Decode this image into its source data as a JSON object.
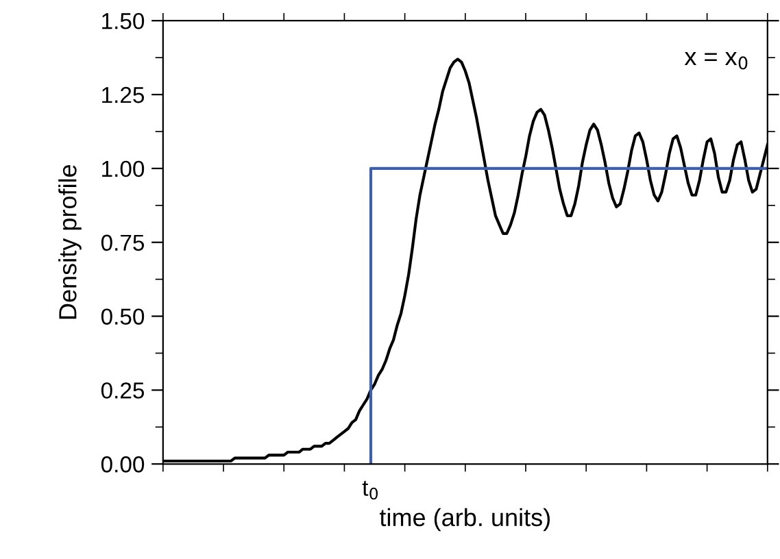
{
  "chart_data": {
    "type": "line",
    "xlabel": "time (arb. units)",
    "ylabel": "Density profile",
    "annotations": [
      "x = x$_{0}$"
    ],
    "categories": [
      null,
      null,
      null,
      null,
      null,
      null,
      null,
      null,
      null,
      null,
      null,
      null,
      null,
      null,
      null,
      null,
      null,
      null,
      null,
      null,
      null,
      null,
      null,
      null,
      null,
      null,
      null,
      null,
      null,
      null,
      null,
      null,
      null,
      null,
      null,
      null,
      null,
      null,
      null,
      null,
      null,
      null,
      null,
      null,
      null,
      null,
      null,
      null,
      null,
      null,
      null,
      null,
      null,
      null,
      null,
      "t$_{0}$",
      null,
      null,
      null,
      null,
      null,
      null,
      null,
      null,
      null,
      null,
      null,
      null,
      null,
      null,
      null,
      null,
      null,
      null,
      null,
      null,
      null,
      null,
      null,
      null,
      null,
      null,
      null,
      null,
      null,
      null,
      null,
      null,
      null,
      null,
      null,
      null,
      null,
      null,
      null,
      null,
      null,
      null,
      null,
      null,
      null,
      null,
      null,
      null,
      null,
      null,
      null,
      null,
      null,
      null,
      null,
      null,
      null,
      null,
      null,
      null,
      null,
      null,
      null,
      null,
      null,
      null,
      null,
      null,
      null,
      null,
      null,
      null,
      null,
      null,
      null,
      null,
      null,
      null,
      null,
      null,
      null,
      null,
      null,
      null,
      null,
      null,
      null,
      null,
      null,
      null,
      null,
      null,
      null,
      null,
      null,
      null,
      null,
      null,
      null,
      null,
      null,
      null,
      null,
      null,
      null
    ],
    "ylim": [
      0,
      1.5
    ],
    "yticks": [
      {
        "value": 0,
        "label": "0.00"
      },
      {
        "value": 0.25,
        "label": "0.25"
      },
      {
        "value": 0.5,
        "label": "0.50"
      },
      {
        "value": 0.75,
        "label": "0.75"
      },
      {
        "value": 1.0,
        "label": "1.00"
      },
      {
        "value": 1.25,
        "label": "1.25"
      },
      {
        "value": 1.5,
        "label": "1.50"
      }
    ],
    "grid": false,
    "legend": false,
    "marker": "none",
    "line_style": "solid",
    "series": [
      {
        "color": "#000000",
        "values": [
          0.01,
          0.01,
          0.01,
          0.01,
          0.01,
          0.01,
          0.01,
          0.01,
          0.01,
          0.01,
          0.01,
          0.01,
          0.01,
          0.01,
          0.01,
          0.01,
          0.01,
          0.01,
          0.01,
          0.02,
          0.02,
          0.02,
          0.02,
          0.02,
          0.02,
          0.02,
          0.02,
          0.02,
          0.03,
          0.03,
          0.03,
          0.03,
          0.03,
          0.04,
          0.04,
          0.04,
          0.04,
          0.05,
          0.05,
          0.05,
          0.06,
          0.06,
          0.06,
          0.07,
          0.07,
          0.08,
          0.09,
          0.1,
          0.11,
          0.12,
          0.14,
          0.15,
          0.18,
          0.2,
          0.22,
          0.25,
          0.27,
          0.3,
          0.32,
          0.35,
          0.39,
          0.42,
          0.47,
          0.51,
          0.57,
          0.64,
          0.73,
          0.83,
          0.91,
          0.97,
          1.03,
          1.09,
          1.15,
          1.2,
          1.26,
          1.3,
          1.34,
          1.36,
          1.37,
          1.36,
          1.33,
          1.29,
          1.23,
          1.17,
          1.1,
          1.03,
          0.96,
          0.9,
          0.84,
          0.81,
          0.78,
          0.78,
          0.81,
          0.85,
          0.91,
          0.98,
          1.04,
          1.11,
          1.16,
          1.19,
          1.2,
          1.18,
          1.13,
          1.07,
          1.0,
          0.93,
          0.88,
          0.84,
          0.84,
          0.88,
          0.94,
          1.02,
          1.08,
          1.13,
          1.15,
          1.13,
          1.08,
          1.02,
          0.95,
          0.9,
          0.87,
          0.88,
          0.93,
          0.99,
          1.06,
          1.11,
          1.12,
          1.09,
          1.03,
          0.96,
          0.91,
          0.89,
          0.92,
          0.98,
          1.05,
          1.1,
          1.11,
          1.07,
          1.01,
          0.95,
          0.91,
          0.91,
          0.96,
          1.03,
          1.09,
          1.1,
          1.05,
          0.97,
          0.92,
          0.92,
          0.96,
          1.03,
          1.08,
          1.09,
          1.03,
          0.96,
          0.92,
          0.93,
          0.98,
          1.03,
          1.08
        ]
      },
      {
        "type": "step",
        "color": "#3f5fad",
        "values": [
          null,
          null,
          null,
          null,
          null,
          null,
          null,
          null,
          null,
          null,
          null,
          null,
          null,
          null,
          null,
          null,
          null,
          null,
          null,
          null,
          null,
          null,
          null,
          null,
          null,
          null,
          null,
          null,
          null,
          null,
          null,
          null,
          null,
          null,
          null,
          null,
          null,
          null,
          null,
          null,
          null,
          null,
          null,
          null,
          null,
          null,
          null,
          null,
          null,
          null,
          null,
          null,
          null,
          null,
          null,
          0,
          1.0,
          1.0,
          1.0,
          1.0,
          1.0,
          1.0,
          1.0,
          1.0,
          1.0,
          1.0,
          1.0,
          1.0,
          1.0,
          1.0,
          1.0,
          1.0,
          1.0,
          1.0,
          1.0,
          1.0,
          1.0,
          1.0,
          1.0,
          1.0,
          1.0,
          1.0,
          1.0,
          1.0,
          1.0,
          1.0,
          1.0,
          1.0,
          1.0,
          1.0,
          1.0,
          1.0,
          1.0,
          1.0,
          1.0,
          1.0,
          1.0,
          1.0,
          1.0,
          1.0,
          1.0,
          1.0,
          1.0,
          1.0,
          1.0,
          1.0,
          1.0,
          1.0,
          1.0,
          1.0,
          1.0,
          1.0,
          1.0,
          1.0,
          1.0,
          1.0,
          1.0,
          1.0,
          1.0,
          1.0,
          1.0,
          1.0,
          1.0,
          1.0,
          1.0,
          1.0,
          1.0,
          1.0,
          1.0,
          1.0,
          1.0,
          1.0,
          1.0,
          1.0,
          1.0,
          1.0,
          1.0,
          1.0,
          1.0,
          1.0,
          1.0,
          1.0,
          1.0,
          1.0,
          1.0,
          1.0,
          1.0,
          1.0,
          1.0,
          1.0,
          1.0,
          1.0,
          1.0,
          1.0,
          1.0,
          1.0,
          1.0,
          1.0,
          1.0,
          1.0,
          1.0
        ]
      }
    ]
  }
}
